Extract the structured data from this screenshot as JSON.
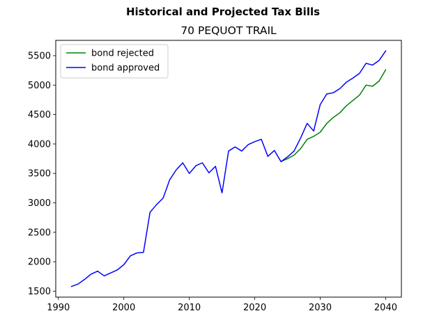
{
  "figure": {
    "suptitle": "Historical and Projected Tax Bills",
    "title": "70 PEQUOT TRAIL"
  },
  "chart_data": {
    "type": "line",
    "title": "70 PEQUOT TRAIL",
    "suptitle": "Historical and Projected Tax Bills",
    "xlabel": "",
    "ylabel": "",
    "xlim": [
      1989.6,
      2042.4
    ],
    "ylim": [
      1399,
      5760
    ],
    "xticks": [
      1990,
      2000,
      2010,
      2020,
      2030,
      2040
    ],
    "xtick_labels": [
      "1990",
      "2000",
      "2010",
      "2020",
      "2030",
      "2040"
    ],
    "yticks": [
      1500,
      2000,
      2500,
      3000,
      3500,
      4000,
      4500,
      5000,
      5500
    ],
    "ytick_labels": [
      "1500",
      "2000",
      "2500",
      "3000",
      "3500",
      "4000",
      "4500",
      "5000",
      "5500"
    ],
    "grid": false,
    "legend_position": "upper left",
    "series": [
      {
        "name": "bond rejected",
        "color": "#008000",
        "x": [
          2024,
          2025,
          2026,
          2027,
          2028,
          2029,
          2030,
          2031,
          2032,
          2033,
          2034,
          2035,
          2036,
          2037,
          2038,
          2039,
          2040
        ],
        "y": [
          3700,
          3750,
          3810,
          3920,
          4080,
          4130,
          4200,
          4350,
          4450,
          4530,
          4650,
          4740,
          4830,
          5000,
          4980,
          5070,
          5260
        ]
      },
      {
        "name": "bond approved",
        "color": "#0000ff",
        "x": [
          1992,
          1993,
          1994,
          1995,
          1996,
          1997,
          1998,
          1999,
          2000,
          2001,
          2002,
          2003,
          2004,
          2005,
          2006,
          2007,
          2008,
          2009,
          2010,
          2011,
          2012,
          2013,
          2014,
          2015,
          2016,
          2017,
          2018,
          2019,
          2020,
          2021,
          2022,
          2023,
          2024,
          2025,
          2026,
          2027,
          2028,
          2029,
          2030,
          2031,
          2032,
          2033,
          2034,
          2035,
          2036,
          2037,
          2038,
          2039,
          2040
        ],
        "y": [
          1580,
          1620,
          1700,
          1790,
          1840,
          1760,
          1810,
          1860,
          1950,
          2100,
          2150,
          2160,
          2840,
          2970,
          3080,
          3390,
          3560,
          3680,
          3500,
          3630,
          3680,
          3510,
          3620,
          3170,
          3880,
          3950,
          3880,
          3990,
          4040,
          4080,
          3790,
          3890,
          3700,
          3780,
          3880,
          4100,
          4350,
          4220,
          4670,
          4850,
          4870,
          4940,
          5050,
          5120,
          5200,
          5370,
          5340,
          5420,
          5580
        ]
      }
    ]
  }
}
